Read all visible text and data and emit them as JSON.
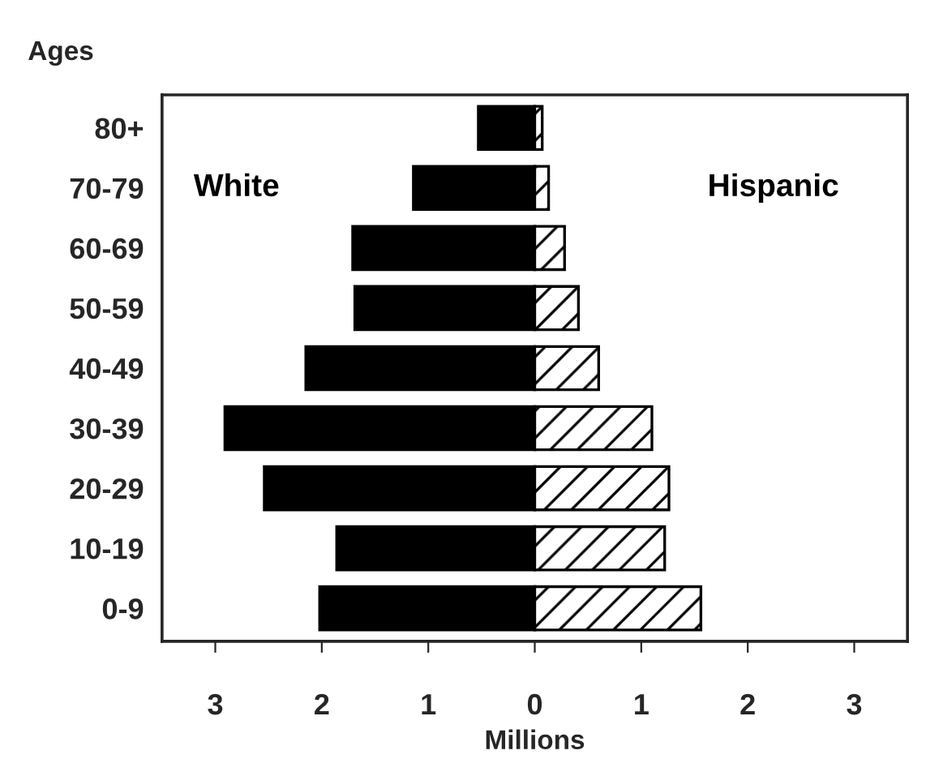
{
  "chart_data": {
    "type": "bar",
    "orientation": "horizontal",
    "ylabel": "Ages",
    "xlabel": "Millions",
    "categories": [
      "80+",
      "70-79",
      "60-69",
      "50-59",
      "40-49",
      "30-39",
      "20-29",
      "10-19",
      "0-9"
    ],
    "series": [
      {
        "color": "#000000",
        "values": [
          -0.53,
          -1.14,
          -1.71,
          -1.69,
          -2.15,
          -2.91,
          -2.54,
          -1.86,
          -2.02
        ]
      },
      {
        "color": "#000000",
        "values": [
          0.07,
          0.13,
          0.28,
          0.41,
          0.6,
          1.1,
          1.26,
          1.22,
          1.56
        ]
      }
    ],
    "xlim": [
      -3.5,
      3.5
    ],
    "xticks": [
      {
        "value": -3,
        "label": "3"
      },
      {
        "value": -2,
        "label": "2"
      },
      {
        "value": -1,
        "label": "1"
      },
      0,
      1,
      2,
      3
    ],
    "stacked": true,
    "annotations": [
      "White",
      "Hispanic"
    ],
    "grid": false,
    "legend": false
  }
}
